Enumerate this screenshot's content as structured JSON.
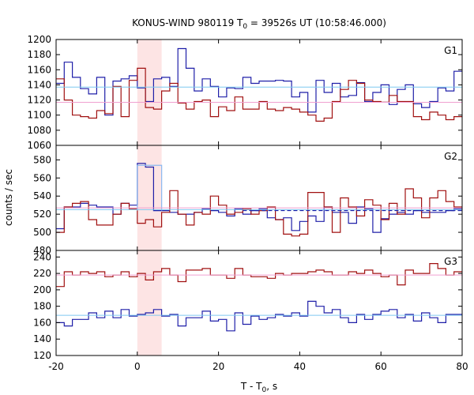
{
  "chart_data": {
    "type": "line",
    "title": "KONUS-WIND 980119 T",
    "title_sub": "0",
    "title_rest": " = 39526s UT (10:58:46.000)",
    "xlabel": "T - T",
    "xlabel_sub": "0",
    "xlabel_rest": ", s",
    "ylabel": "counts / sec",
    "xlim": [
      -20,
      80
    ],
    "x_ticks": [
      -20,
      0,
      20,
      40,
      60,
      80
    ],
    "highlight_interval": [
      0,
      6
    ],
    "colors": {
      "blue": "#1f1fa8",
      "red": "#a01010",
      "blue_fit": "#7fc8f0",
      "red_fit": "#f0a0d0",
      "highlight": "#fde4e4",
      "spike": "#8ab8f0"
    },
    "step_edges": [
      -20,
      -18,
      -16,
      -14,
      -12,
      -10,
      -8,
      -6,
      -4,
      -2,
      0,
      2,
      4,
      6,
      8,
      10,
      12,
      14,
      16,
      18,
      20,
      22,
      24,
      26,
      28,
      30,
      32,
      34,
      36,
      38,
      40,
      42,
      44,
      46,
      48,
      50,
      52,
      54,
      56,
      58,
      60,
      62,
      64,
      66,
      68,
      70,
      72,
      74,
      76,
      78,
      80
    ],
    "panels": [
      {
        "label": "G1",
        "ylim": [
          1060,
          1200
        ],
        "y_ticks": [
          1060,
          1080,
          1100,
          1120,
          1140,
          1160,
          1180,
          1200
        ],
        "series": [
          {
            "color_key": "blue",
            "style": "step",
            "values": [
              1142,
              1170,
              1150,
              1135,
              1128,
              1150,
              1100,
              1145,
              1148,
              1152,
              1136,
              1118,
              1148,
              1150,
              1138,
              1188,
              1162,
              1132,
              1148,
              1138,
              1124,
              1136,
              1135,
              1150,
              1142,
              1145,
              1145,
              1146,
              1145,
              1124,
              1130,
              1104,
              1146,
              1130,
              1142,
              1124,
              1126,
              1143,
              1118,
              1130,
              1140,
              1114,
              1134,
              1140,
              1115,
              1110,
              1118,
              1136,
              1132,
              1158
            ]
          },
          {
            "color_key": "red",
            "style": "step",
            "values": [
              1148,
              1120,
              1100,
              1098,
              1096,
              1106,
              1102,
              1138,
              1098,
              1146,
              1162,
              1110,
              1108,
              1132,
              1142,
              1116,
              1108,
              1118,
              1120,
              1098,
              1111,
              1106,
              1124,
              1108,
              1108,
              1118,
              1108,
              1106,
              1110,
              1108,
              1104,
              1100,
              1092,
              1096,
              1118,
              1134,
              1146,
              1142,
              1120,
              1118,
              1117,
              1126,
              1118,
              1118,
              1098,
              1094,
              1104,
              1100,
              1094,
              1098
            ]
          },
          {
            "color_key": "blue_fit",
            "style": "flat",
            "value": 1137
          },
          {
            "color_key": "red_fit",
            "style": "flat",
            "value": 1117
          }
        ]
      },
      {
        "label": "G2",
        "ylim": [
          480,
          596
        ],
        "y_ticks": [
          480,
          500,
          520,
          540,
          560,
          580
        ],
        "series": [
          {
            "color_key": "blue",
            "style": "step",
            "values": [
              504,
              528,
              528,
              532,
              530,
              528,
              528,
              520,
              532,
              530,
              576,
              572,
              524,
              524,
              522,
              520,
              520,
              522,
              526,
              524,
              522,
              518,
              526,
              520,
              524,
              526,
              516,
              514,
              516,
              502,
              512,
              518,
              512,
              528,
              522,
              522,
              510,
              528,
              526,
              500,
              515,
              520,
              522,
              520,
              524,
              522,
              522,
              522,
              524,
              526
            ]
          },
          {
            "color_key": "red",
            "style": "step",
            "values": [
              500,
              528,
              532,
              534,
              514,
              508,
              508,
              520,
              532,
              526,
              510,
              514,
              506,
              522,
              546,
              520,
              508,
              522,
              520,
              540,
              530,
              520,
              522,
              526,
              520,
              524,
              528,
              514,
              498,
              496,
              498,
              544,
              544,
              528,
              500,
              538,
              528,
              518,
              536,
              530,
              514,
              532,
              520,
              548,
              538,
              516,
              538,
              546,
              534,
              528
            ]
          },
          {
            "color_key": "spike",
            "style": "spike",
            "x": [
              0,
              6
            ],
            "value": 574,
            "base": 524
          },
          {
            "color_key": "blue_fit",
            "style": "flat",
            "value": 525
          },
          {
            "color_key": "red_fit",
            "style": "flat",
            "value": 527
          },
          {
            "color_key": "blue",
            "style": "dashed",
            "x": [
              26,
              80
            ],
            "value": 524
          }
        ]
      },
      {
        "label": "G3",
        "ylim": [
          120,
          248
        ],
        "y_ticks": [
          120,
          140,
          160,
          180,
          200,
          220,
          240
        ],
        "series": [
          {
            "color_key": "red",
            "style": "step",
            "values": [
              204,
              222,
              218,
              222,
              220,
              222,
              216,
              218,
              222,
              216,
              220,
              212,
              222,
              226,
              218,
              210,
              224,
              224,
              226,
              218,
              218,
              214,
              226,
              218,
              216,
              216,
              214,
              220,
              218,
              220,
              220,
              222,
              224,
              222,
              218,
              218,
              222,
              220,
              224,
              220,
              216,
              218,
              206,
              224,
              220,
              220,
              232,
              226,
              218,
              222
            ]
          },
          {
            "color_key": "blue",
            "style": "step",
            "values": [
              160,
              156,
              164,
              164,
              172,
              166,
              174,
              166,
              176,
              168,
              170,
              172,
              176,
              168,
              170,
              156,
              166,
              166,
              174,
              162,
              164,
              150,
              172,
              158,
              168,
              164,
              166,
              170,
              168,
              172,
              168,
              186,
              180,
              172,
              176,
              166,
              160,
              170,
              164,
              170,
              174,
              176,
              166,
              170,
              162,
              172,
              166,
              160,
              170,
              170
            ]
          },
          {
            "color_key": "red_fit",
            "style": "flat",
            "value": 218
          },
          {
            "color_key": "blue_fit",
            "style": "flat",
            "value": 169
          }
        ]
      }
    ]
  }
}
